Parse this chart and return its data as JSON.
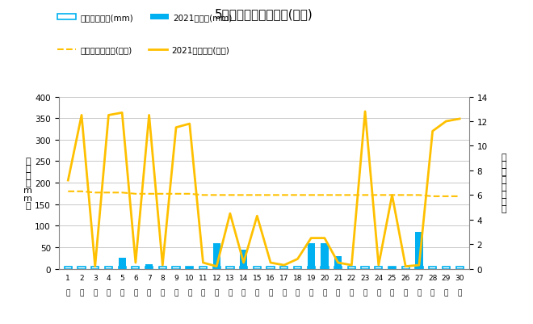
{
  "title": "5月降水量・日照時間(日別)",
  "days": [
    1,
    2,
    3,
    4,
    5,
    6,
    7,
    8,
    9,
    10,
    11,
    12,
    13,
    14,
    15,
    16,
    17,
    18,
    19,
    20,
    21,
    22,
    23,
    24,
    25,
    26,
    27,
    28,
    29,
    30
  ],
  "precip_avg": [
    5,
    5,
    5,
    5,
    5,
    5,
    5,
    5,
    5,
    5,
    5,
    5,
    5,
    5,
    5,
    5,
    5,
    5,
    5,
    5,
    5,
    5,
    5,
    5,
    5,
    5,
    5,
    5,
    5,
    5
  ],
  "precip_2021": [
    0,
    0,
    0,
    0,
    25,
    0,
    10,
    0,
    0,
    5,
    0,
    60,
    0,
    45,
    0,
    0,
    0,
    0,
    60,
    60,
    30,
    0,
    0,
    0,
    5,
    0,
    85,
    0,
    0,
    0
  ],
  "sunshine_avg": [
    6.3,
    6.3,
    6.2,
    6.2,
    6.2,
    6.1,
    6.1,
    6.1,
    6.1,
    6.1,
    6.0,
    6.0,
    6.0,
    6.0,
    6.0,
    6.0,
    6.0,
    6.0,
    6.0,
    6.0,
    6.0,
    6.0,
    6.0,
    6.0,
    6.0,
    6.0,
    6.0,
    5.9,
    5.9,
    5.9
  ],
  "sunshine_2021": [
    7.2,
    12.5,
    0.2,
    12.5,
    12.7,
    0.5,
    12.5,
    0.3,
    11.5,
    11.8,
    0.5,
    0.2,
    4.5,
    0.5,
    4.3,
    0.5,
    0.3,
    0.8,
    2.5,
    2.5,
    0.5,
    0.3,
    12.8,
    0.3,
    6.0,
    0.2,
    0.3,
    11.2,
    12.0,
    12.2
  ],
  "ylabel_left": "降\n水\n量\n（\nm\nm\n）",
  "ylabel_right": "日\n照\n時\n間\n（\n時\n間\n）",
  "ylim_left": [
    0,
    400
  ],
  "ylim_right": [
    0,
    14
  ],
  "yticks_left": [
    0,
    50,
    100,
    150,
    200,
    250,
    300,
    350,
    400
  ],
  "yticks_right": [
    0,
    2,
    4,
    6,
    8,
    10,
    12,
    14
  ],
  "precip_avg_color": "#00b0f0",
  "precip_2021_color": "#00b0f0",
  "sunshine_avg_color": "#ffc000",
  "sunshine_2021_color": "#ffc000",
  "bar_width": 0.55,
  "background_color": "#ffffff",
  "legend_row1_l": "降水量平年値(mm)",
  "legend_row1_r": "2021降水量(mm)",
  "legend_row2_l": "日照時間平年値(時間)",
  "legend_row2_r": "2021日照時間(時間)",
  "grid_color": "#c8c8c8",
  "spine_color": "#888888"
}
